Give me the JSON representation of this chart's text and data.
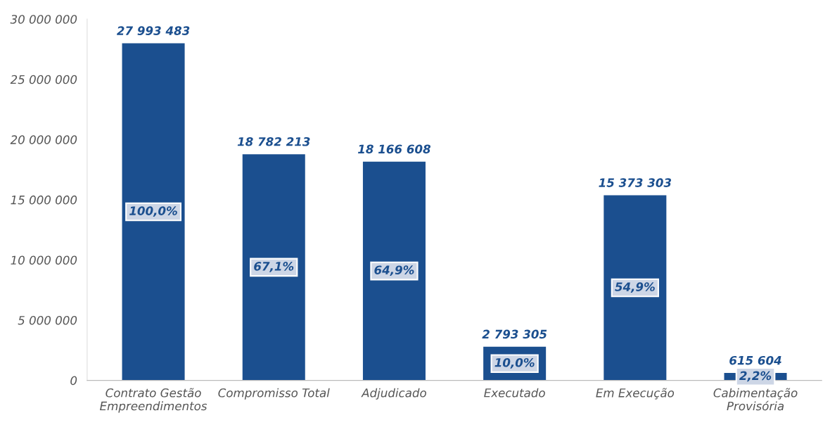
{
  "chart_data": {
    "type": "bar",
    "categories": [
      "Contrato Gestão\nEmpreendimentos",
      "Compromisso Total",
      "Adjudicado",
      "Executado",
      "Em Execução",
      "Cabimentação\nProvisória"
    ],
    "values": [
      27993483,
      18782213,
      18166608,
      2793305,
      15373303,
      615604
    ],
    "value_labels": [
      "27 993 483",
      "18 782 213",
      "18 166 608",
      "2 793 305",
      "15 373 303",
      "615 604"
    ],
    "color": "#1b4f8f",
    "ylim": [
      0,
      30000000
    ],
    "yticks": [
      {
        "value": 0,
        "label": "0"
      },
      {
        "value": 5000000,
        "label": "5 000 000"
      },
      {
        "value": 10000000,
        "label": "10 000 000"
      },
      {
        "value": 15000000,
        "label": "15 000 000"
      },
      {
        "value": 20000000,
        "label": "20 000 000"
      },
      {
        "value": 25000000,
        "label": "25 000 000"
      },
      {
        "value": 30000000,
        "label": "30 000 000"
      }
    ],
    "grid": false,
    "legend": false,
    "annotations": [
      "100,0%",
      "67,1%",
      "64,9%",
      "10,0%",
      "54,9%",
      "2,2%"
    ]
  }
}
